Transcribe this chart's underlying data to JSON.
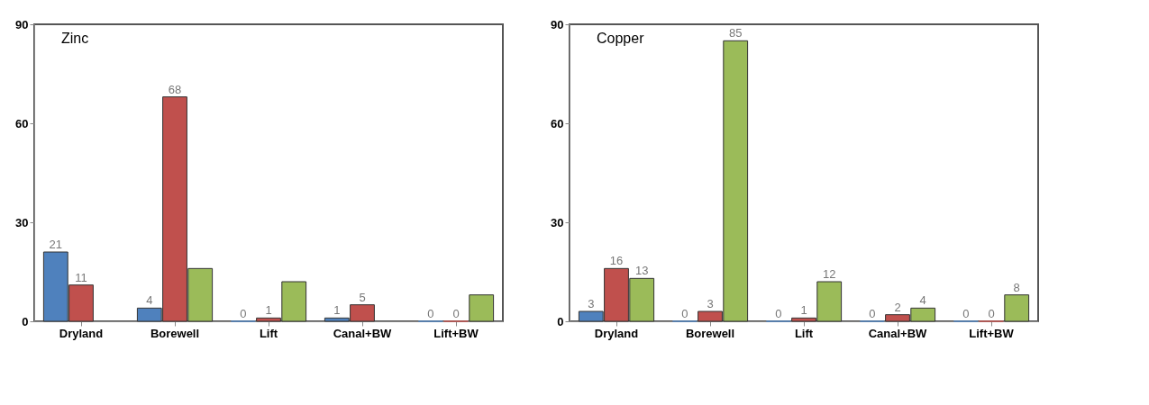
{
  "chart_data": [
    {
      "type": "bar",
      "title": "Zinc",
      "categories": [
        "Dryland",
        "Borewell",
        "Lift",
        "Canal+BW",
        "Lift+BW"
      ],
      "series": [
        {
          "color": "#4f81bd",
          "values": [
            21,
            4,
            0,
            1,
            0
          ],
          "value_labels": [
            "21",
            "4",
            "0",
            "1",
            "0"
          ]
        },
        {
          "color": "#c0504d",
          "values": [
            11,
            68,
            1,
            5,
            0
          ],
          "value_labels": [
            "11",
            "68",
            "1",
            "5",
            "0"
          ]
        },
        {
          "color": "#9bbb59",
          "values": [
            null,
            16,
            12,
            null,
            8
          ],
          "value_labels": [
            null,
            null,
            null,
            null,
            null
          ]
        }
      ],
      "ylim": [
        0,
        90
      ],
      "yticks": [
        0,
        30,
        60,
        90
      ],
      "grid": false,
      "legend": false
    },
    {
      "type": "bar",
      "title": "Copper",
      "categories": [
        "Dryland",
        "Borewell",
        "Lift",
        "Canal+BW",
        "Lift+BW"
      ],
      "series": [
        {
          "color": "#4f81bd",
          "values": [
            3,
            0,
            0,
            0,
            0
          ],
          "value_labels": [
            "3",
            "0",
            "0",
            "0",
            "0"
          ]
        },
        {
          "color": "#c0504d",
          "values": [
            16,
            3,
            1,
            2,
            0
          ],
          "value_labels": [
            "16",
            "3",
            "1",
            "2",
            "0"
          ]
        },
        {
          "color": "#9bbb59",
          "values": [
            13,
            85,
            12,
            4,
            8
          ],
          "value_labels": [
            "13",
            "85",
            "12",
            "4",
            "8"
          ]
        }
      ],
      "ylim": [
        0,
        90
      ],
      "yticks": [
        0,
        30,
        60,
        90
      ],
      "grid": false,
      "legend": false
    }
  ]
}
